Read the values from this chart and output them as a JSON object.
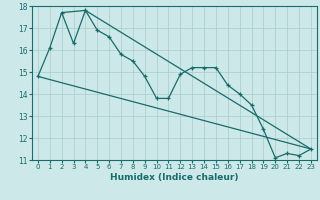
{
  "xlabel": "Humidex (Indice chaleur)",
  "xlim": [
    -0.5,
    23.5
  ],
  "ylim": [
    11,
    18
  ],
  "yticks": [
    11,
    12,
    13,
    14,
    15,
    16,
    17,
    18
  ],
  "xticks": [
    0,
    1,
    2,
    3,
    4,
    5,
    6,
    7,
    8,
    9,
    10,
    11,
    12,
    13,
    14,
    15,
    16,
    17,
    18,
    19,
    20,
    21,
    22,
    23
  ],
  "bg_color": "#cce8e8",
  "grid_color": "#aacccc",
  "line_color": "#1a6b6b",
  "line1_x": [
    0,
    1,
    2,
    3,
    4,
    5,
    6,
    7,
    8,
    9,
    10,
    11,
    12,
    13,
    14,
    15,
    16,
    17,
    18,
    19,
    20,
    21,
    22,
    23
  ],
  "line1_y": [
    14.8,
    16.1,
    17.7,
    16.3,
    17.8,
    16.9,
    16.6,
    15.8,
    15.5,
    14.8,
    13.8,
    13.8,
    14.9,
    15.2,
    15.2,
    15.2,
    14.4,
    14.0,
    13.5,
    12.4,
    11.1,
    11.3,
    11.2,
    11.5
  ],
  "line2_x": [
    0,
    23
  ],
  "line2_y": [
    14.8,
    11.5
  ],
  "line3_x": [
    2,
    4,
    23
  ],
  "line3_y": [
    17.7,
    17.8,
    11.5
  ]
}
